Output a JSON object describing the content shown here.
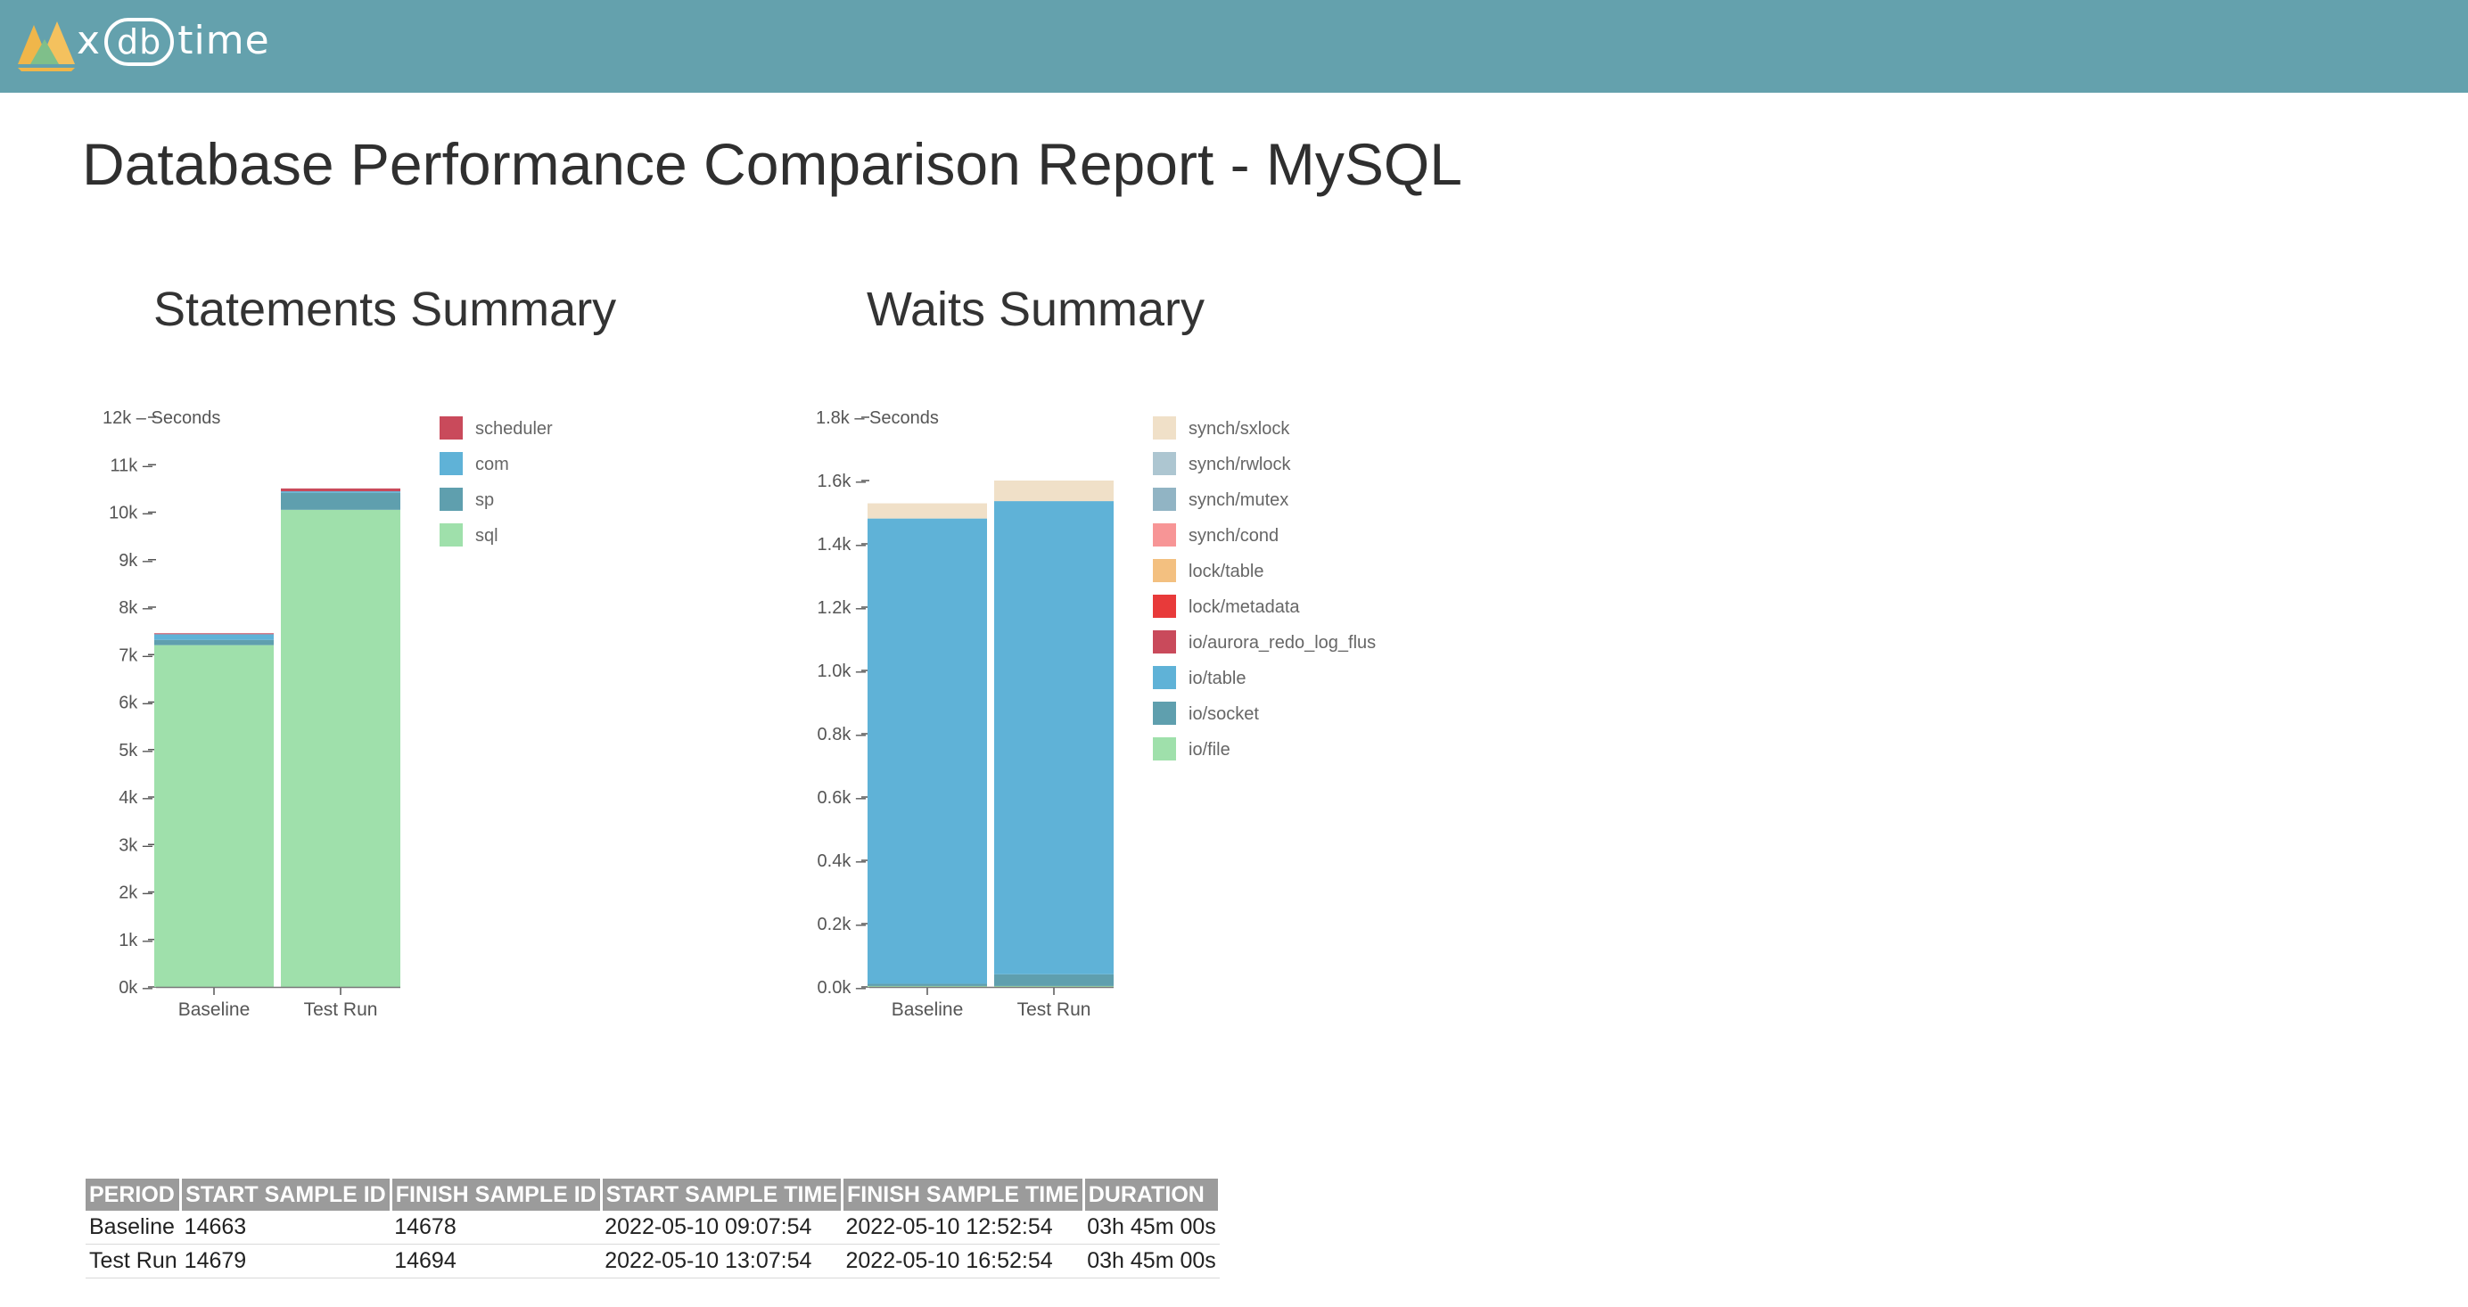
{
  "header": {
    "logo_prefix": "x",
    "logo_db": "db",
    "logo_suffix": "time"
  },
  "page_title": "Database Performance Comparison Report - MySQL",
  "statements_title": "Statements Summary",
  "waits_title": "Waits Summary",
  "chart_data": [
    {
      "type": "bar",
      "stacked": true,
      "title": "Statements Summary",
      "ylabel": "Seconds",
      "categories": [
        "Baseline",
        "Test Run"
      ],
      "ylim": [
        0,
        12000
      ],
      "yticks": [
        0,
        1000,
        2000,
        3000,
        4000,
        5000,
        6000,
        7000,
        8000,
        9000,
        10000,
        11000,
        12000
      ],
      "ytick_labels": [
        "0k",
        "1k",
        "2k",
        "3k",
        "4k",
        "5k",
        "6k",
        "7k",
        "8k",
        "9k",
        "10k",
        "11k",
        "12k"
      ],
      "legend_position": "right",
      "series": [
        {
          "name": "sql",
          "color": "#9fe0ab",
          "values": [
            7200,
            10050
          ]
        },
        {
          "name": "sp",
          "color": "#5f9fae",
          "values": [
            110,
            360
          ]
        },
        {
          "name": "com",
          "color": "#5fb2d7",
          "values": [
            120,
            30
          ]
        },
        {
          "name": "scheduler",
          "color": "#c94a5b",
          "values": [
            20,
            60
          ]
        }
      ]
    },
    {
      "type": "bar",
      "stacked": true,
      "title": "Waits Summary",
      "ylabel": "Seconds",
      "categories": [
        "Baseline",
        "Test Run"
      ],
      "ylim": [
        0,
        1800
      ],
      "yticks": [
        0,
        200,
        400,
        600,
        800,
        1000,
        1200,
        1400,
        1600,
        1800
      ],
      "ytick_labels": [
        "0.0k",
        "0.2k",
        "0.4k",
        "0.6k",
        "0.8k",
        "1.0k",
        "1.2k",
        "1.4k",
        "1.6k",
        "1.8k"
      ],
      "legend_position": "right",
      "series": [
        {
          "name": "io/file",
          "color": "#9fe0ab",
          "values": [
            3,
            3
          ]
        },
        {
          "name": "io/socket",
          "color": "#5f9fae",
          "values": [
            7,
            37
          ]
        },
        {
          "name": "io/table",
          "color": "#5fb2d7",
          "values": [
            1470,
            1495
          ]
        },
        {
          "name": "io/aurora_redo_log_flus",
          "color": "#c94a5b",
          "values": [
            0,
            0
          ]
        },
        {
          "name": "lock/metadata",
          "color": "#e83a3a",
          "values": [
            0,
            0
          ]
        },
        {
          "name": "lock/table",
          "color": "#f3c080",
          "values": [
            0,
            0
          ]
        },
        {
          "name": "synch/cond",
          "color": "#f79596",
          "values": [
            0,
            0
          ]
        },
        {
          "name": "synch/mutex",
          "color": "#91b4c4",
          "values": [
            0,
            0
          ]
        },
        {
          "name": "synch/rwlock",
          "color": "#adc6d1",
          "values": [
            0,
            0
          ]
        },
        {
          "name": "synch/sxlock",
          "color": "#f0e0c8",
          "values": [
            48,
            65
          ]
        }
      ]
    }
  ],
  "period_table": {
    "headers": [
      "PERIOD",
      "START SAMPLE ID",
      "FINISH SAMPLE ID",
      "START SAMPLE TIME",
      "FINISH SAMPLE TIME",
      "DURATION"
    ],
    "rows": [
      [
        "Baseline",
        "14663",
        "14678",
        "2022-05-10 09:07:54",
        "2022-05-10 12:52:54",
        "03h 45m 00s"
      ],
      [
        "Test Run",
        "14679",
        "14694",
        "2022-05-10 13:07:54",
        "2022-05-10 16:52:54",
        "03h 45m 00s"
      ]
    ]
  }
}
